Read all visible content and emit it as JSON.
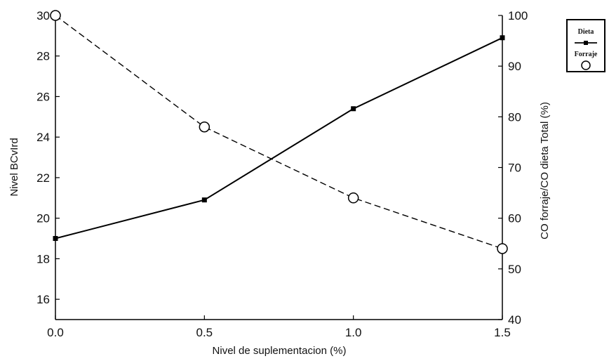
{
  "chart_data": {
    "type": "line",
    "title": "",
    "xlabel": "Nivel de suplementacion (%)",
    "ylabel": "Nivel BCvIrd",
    "y2label": "CO forraje/CO dieta Total (%)",
    "xlim": [
      0.0,
      1.5
    ],
    "ylim": [
      15,
      30
    ],
    "y2lim": [
      40,
      100
    ],
    "x_ticks": [
      "0.0",
      "0.5",
      "1.0",
      "1.5"
    ],
    "y_ticks": [
      "16",
      "18",
      "20",
      "22",
      "24",
      "26",
      "28",
      "30"
    ],
    "y2_ticks": [
      "40",
      "50",
      "60",
      "70",
      "80",
      "90",
      "100"
    ],
    "grid": false,
    "legend_position": "top-right outside",
    "series": [
      {
        "name": "Dieta",
        "axis": "left",
        "marker": "filled-square",
        "line": "solid",
        "x": [
          0.0,
          0.5,
          1.0,
          1.5
        ],
        "y": [
          19.0,
          20.9,
          25.4,
          28.9
        ]
      },
      {
        "name": "Forraje",
        "axis": "right",
        "marker": "open-circle",
        "line": "dashed",
        "x": [
          0.0,
          0.5,
          1.0,
          1.5
        ],
        "y": [
          100.0,
          78.0,
          64.0,
          54.0
        ]
      }
    ]
  }
}
